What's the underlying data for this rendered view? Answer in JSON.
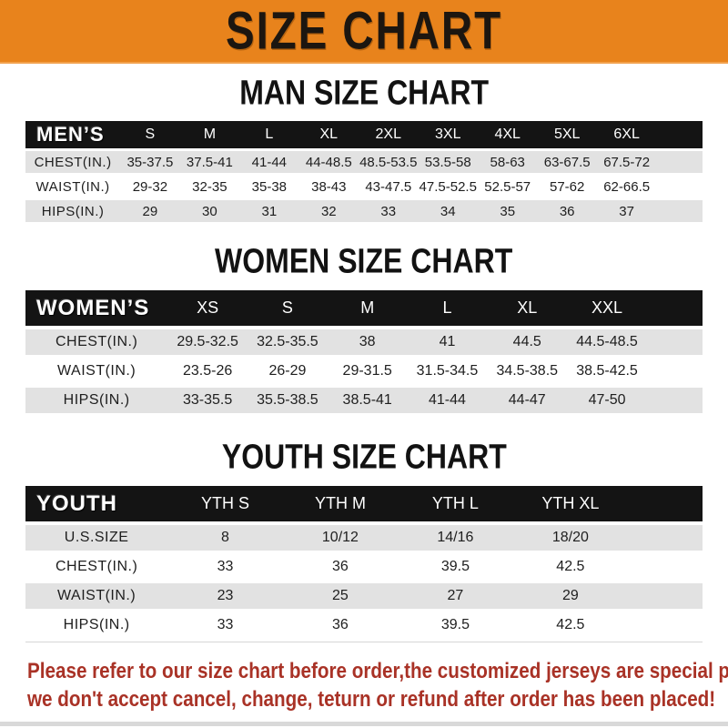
{
  "banner": {
    "title": "SIZE CHART"
  },
  "sections": [
    {
      "id": "men",
      "title": "MAN SIZE CHART",
      "header_label": "MEN’S",
      "columns": [
        "S",
        "M",
        "L",
        "XL",
        "2XL",
        "3XL",
        "4XL",
        "5XL",
        "6XL"
      ],
      "rows": [
        {
          "label": "CHEST(IN.)",
          "values": [
            "35-37.5",
            "37.5-41",
            "41-44",
            "44-48.5",
            "48.5-53.5",
            "53.5-58",
            "58-63",
            "63-67.5",
            "67.5-72"
          ]
        },
        {
          "label": "WAIST(IN.)",
          "values": [
            "29-32",
            "32-35",
            "35-38",
            "38-43",
            "43-47.5",
            "47.5-52.5",
            "52.5-57",
            "57-62",
            "62-66.5"
          ]
        },
        {
          "label": "HIPS(IN.)",
          "values": [
            "29",
            "30",
            "31",
            "32",
            "33",
            "34",
            "35",
            "36",
            "37"
          ]
        }
      ]
    },
    {
      "id": "women",
      "title": "WOMEN SIZE CHART",
      "header_label": "WOMEN’S",
      "columns": [
        "XS",
        "S",
        "M",
        "L",
        "XL",
        "XXL"
      ],
      "rows": [
        {
          "label": "CHEST(IN.)",
          "values": [
            "29.5-32.5",
            "32.5-35.5",
            "38",
            "41",
            "44.5",
            "44.5-48.5"
          ]
        },
        {
          "label": "WAIST(IN.)",
          "values": [
            "23.5-26",
            "26-29",
            "29-31.5",
            "31.5-34.5",
            "34.5-38.5",
            "38.5-42.5"
          ]
        },
        {
          "label": "HIPS(IN.)",
          "values": [
            "33-35.5",
            "35.5-38.5",
            "38.5-41",
            "41-44",
            "44-47",
            "47-50"
          ]
        }
      ]
    },
    {
      "id": "youth",
      "title": "YOUTH SIZE CHART",
      "header_label": "YOUTH",
      "columns": [
        "YTH S",
        "YTH M",
        "YTH L",
        "YTH XL"
      ],
      "rows": [
        {
          "label": "U.S.SIZE",
          "values": [
            "8",
            "10/12",
            "14/16",
            "18/20"
          ]
        },
        {
          "label": "CHEST(IN.)",
          "values": [
            "33",
            "36",
            "39.5",
            "42.5"
          ]
        },
        {
          "label": "WAIST(IN.)",
          "values": [
            "23",
            "25",
            "27",
            "29"
          ]
        },
        {
          "label": "HIPS(IN.)",
          "values": [
            "33",
            "36",
            "39.5",
            "42.5"
          ]
        }
      ]
    }
  ],
  "disclaimer": {
    "lines": [
      "Please refer to our size chart before order,the customized jerseys are special products,",
      "we don't accept cancel, change, teturn or refund after order has been placed!"
    ]
  },
  "colors": {
    "banner_bg": "#E8831C",
    "header_bar_bg": "#141414",
    "row_alt_bg": "#E2E2E2",
    "disclaimer_text": "#A93226"
  }
}
